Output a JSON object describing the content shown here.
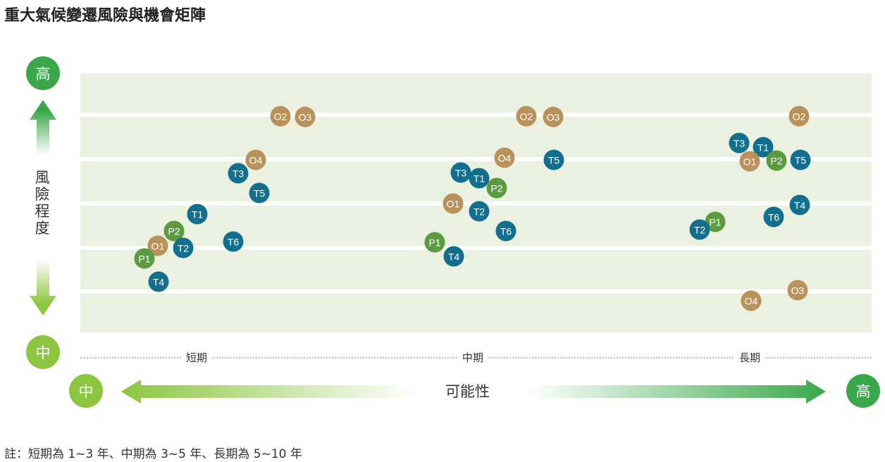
{
  "title": "重大氣候變遷風險與機會矩陣",
  "y_axis": {
    "label": "風險程度",
    "high": "高",
    "mid": "中"
  },
  "x_axis": {
    "label": "可能性",
    "high": "高",
    "mid": "中",
    "periods": [
      "短期",
      "中期",
      "長期"
    ]
  },
  "note": "註：短期為 1~3 年、中期為 3~5 年、長期為 5~10 年",
  "colors": {
    "T": "#136f8e",
    "O": "#b8925a",
    "P": "#5d9b41",
    "high": "#3aa84a",
    "mid": "#8cc540",
    "band": "#eaf1e0"
  },
  "points": {
    "短期": [
      "O2",
      "O3",
      "O4",
      "T3",
      "T5",
      "T1",
      "P2",
      "O1",
      "T2",
      "T6",
      "P1",
      "T4"
    ],
    "中期": [
      "O2",
      "O3",
      "O4",
      "T5",
      "T3",
      "T1",
      "P2",
      "O1",
      "T2",
      "T6",
      "P1",
      "T4"
    ],
    "長期": [
      "O2",
      "T3",
      "T1",
      "O1",
      "P2",
      "T5",
      "T4",
      "T6",
      "P1",
      "T2",
      "O4",
      "O3"
    ]
  }
}
